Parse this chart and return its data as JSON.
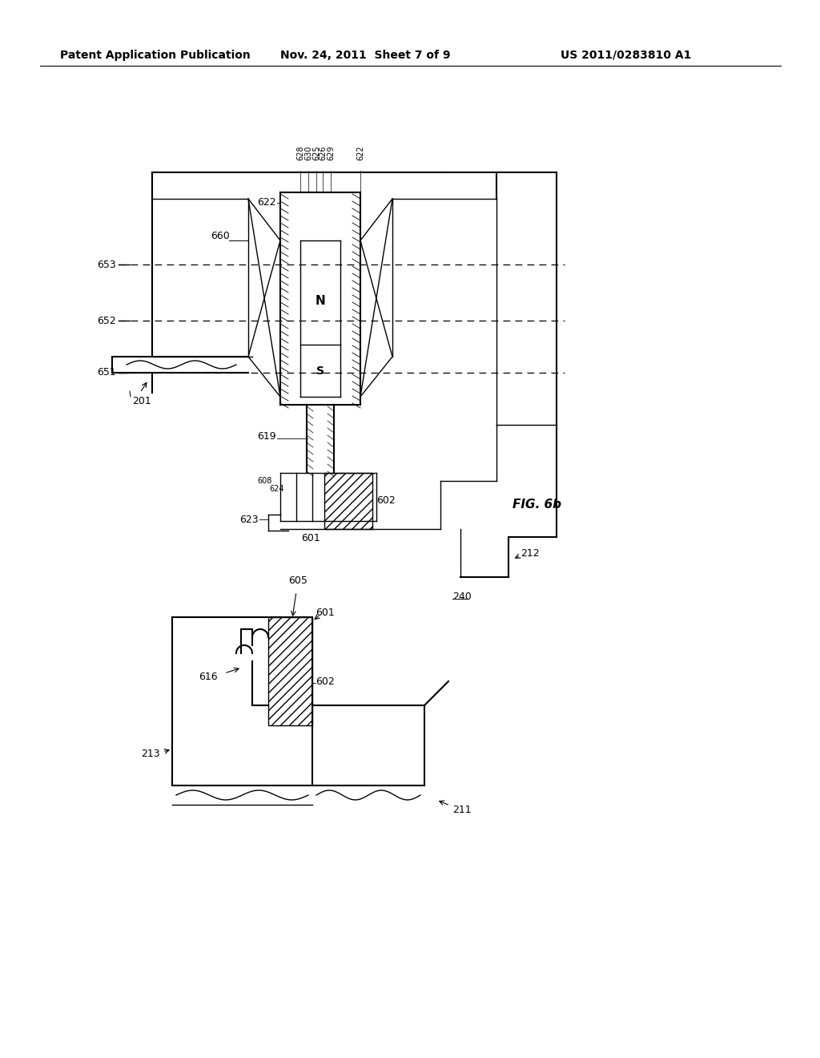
{
  "bg_color": "#ffffff",
  "header_left": "Patent Application Publication",
  "header_center": "Nov. 24, 2011  Sheet 7 of 9",
  "header_right": "US 2011/0283810 A1",
  "fig_label": "FIG. 6b",
  "header_fontsize": 10,
  "label_fontsize": 9
}
